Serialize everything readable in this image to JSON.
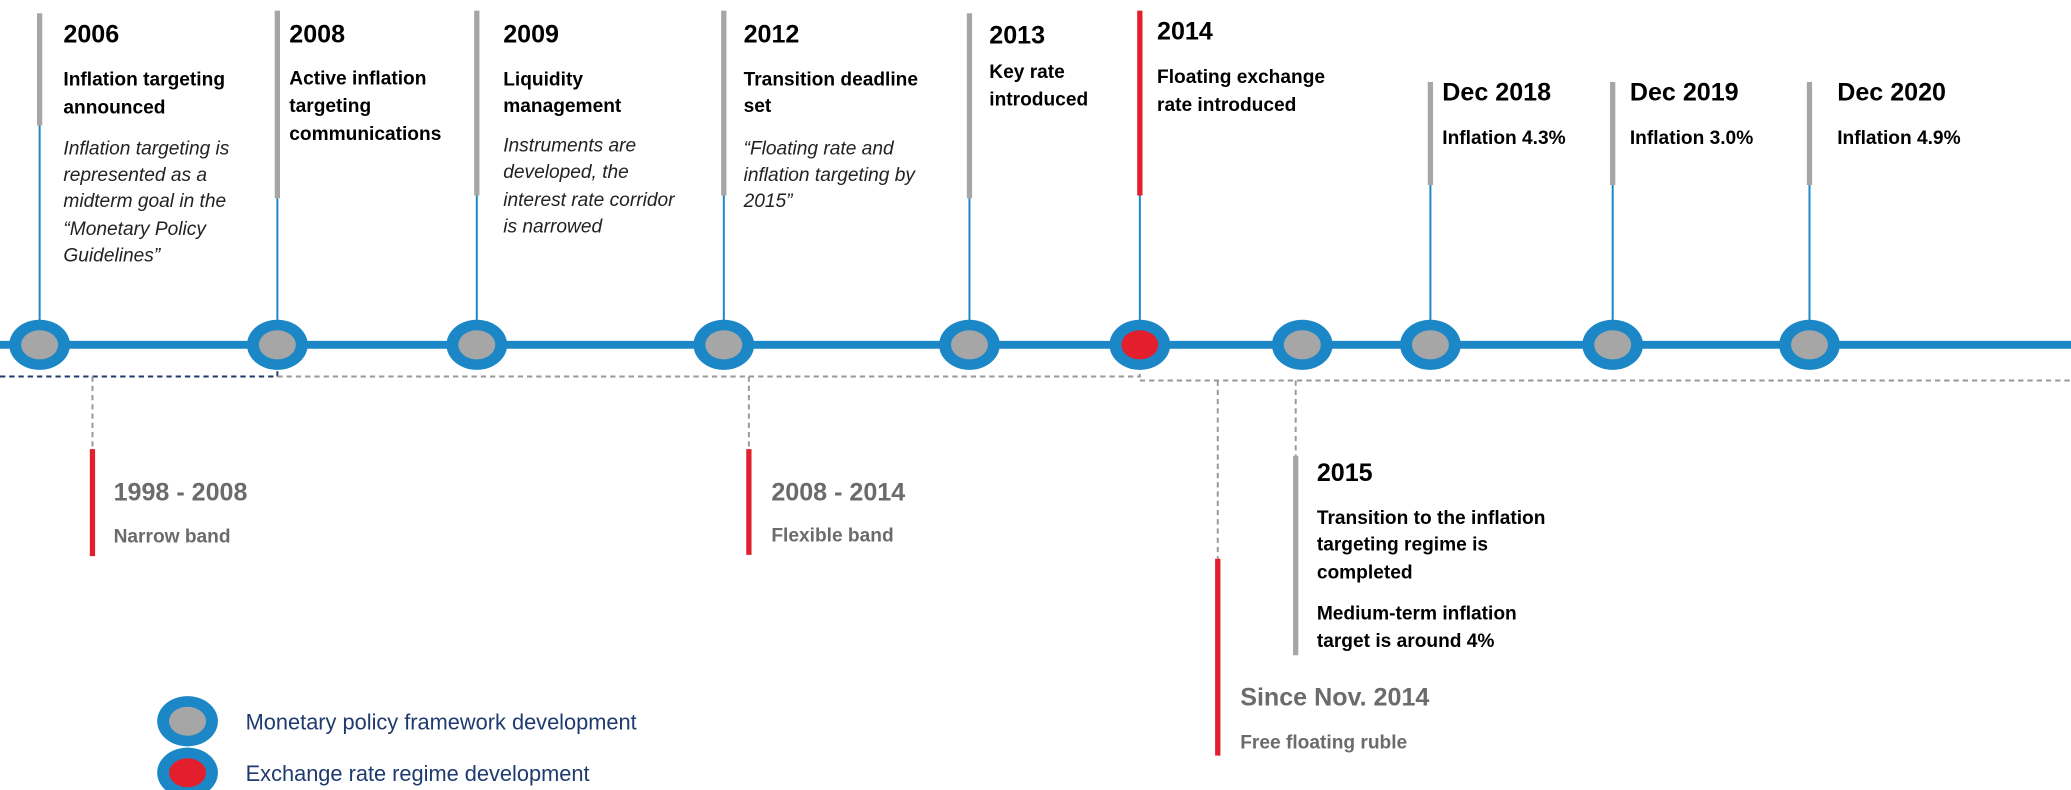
{
  "top_events": [
    {
      "year": "2006",
      "title": [
        "Inflation targeting",
        "announced"
      ],
      "description": [
        "Inflation targeting is",
        "represented as a",
        "midterm goal in the",
        "“Monetary Policy",
        "Guidelines”"
      ]
    },
    {
      "year": "2008",
      "title": [
        "Active inflation",
        "targeting",
        "communications"
      ]
    },
    {
      "year": "2009",
      "title": [
        "Liquidity",
        "management"
      ],
      "description": [
        "Instruments are",
        "developed, the",
        "interest rate corridor",
        "is narrowed"
      ]
    },
    {
      "year": "2012",
      "title": [
        "Transition deadline",
        "set"
      ],
      "description": [
        "“Floating rate and",
        "inflation targeting by",
        "2015”"
      ]
    },
    {
      "year": "2013",
      "title": [
        "Key rate",
        "introduced"
      ]
    },
    {
      "year": "2014",
      "title": [
        "Floating exchange",
        "rate introduced"
      ]
    },
    {
      "year": "Dec 2018",
      "title": [
        "Inflation 4.3%"
      ]
    },
    {
      "year": "Dec 2019",
      "title": [
        "Inflation 3.0%"
      ]
    },
    {
      "year": "Dec 2020",
      "title": [
        "Inflation 4.9%"
      ]
    }
  ],
  "bottom_events": [
    {
      "period": "1998 - 2008",
      "label": [
        "Narrow band"
      ]
    },
    {
      "period": "2008 - 2014",
      "label": [
        "Flexible band"
      ]
    },
    {
      "period": "Since Nov. 2014",
      "label": [
        "Free floating ruble"
      ]
    },
    {
      "period": "2015",
      "label": [
        "Transition to the inflation",
        "targeting regime is",
        "completed"
      ],
      "note": [
        "Medium-term inflation",
        "target is around 4%"
      ]
    }
  ],
  "legend": [
    "Monetary policy framework development",
    "Exchange rate regime development"
  ]
}
